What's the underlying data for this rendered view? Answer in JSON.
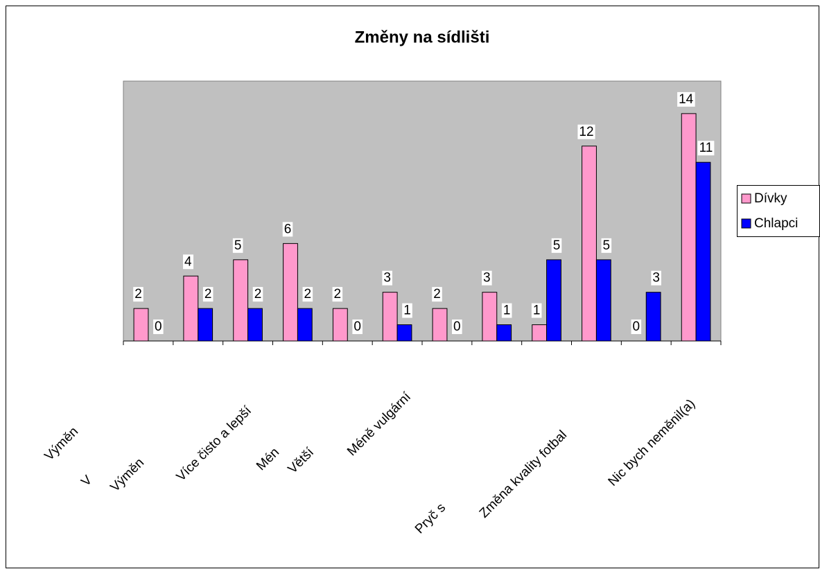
{
  "chart_data": {
    "type": "bar",
    "title": "Změny na sídlišti",
    "categories": [
      "Výměn",
      "V",
      "Výměn",
      "Více čisto a lepší",
      "Mén",
      "Větší",
      "Méně vulgární",
      "Pryč s",
      null,
      "Změna kvality fotbal",
      null,
      "Nic bych neměnil(a)"
    ],
    "series": [
      {
        "name": "Dívky",
        "color": "#ff99cc",
        "values": [
          2,
          4,
          5,
          6,
          2,
          3,
          2,
          3,
          1,
          12,
          0,
          14
        ]
      },
      {
        "name": "Chlapci",
        "color": "#0000ff",
        "values": [
          0,
          2,
          2,
          2,
          0,
          1,
          0,
          1,
          5,
          5,
          3,
          11
        ]
      }
    ],
    "ylim": [
      0,
      16
    ],
    "grid": false,
    "legend": "right",
    "plot_background": "#c0c0c0"
  }
}
